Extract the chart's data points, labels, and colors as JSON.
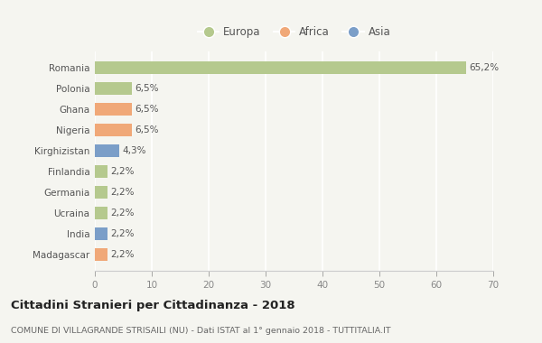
{
  "categories": [
    "Romania",
    "Polonia",
    "Ghana",
    "Nigeria",
    "Kirghizistan",
    "Finlandia",
    "Germania",
    "Ucraina",
    "India",
    "Madagascar"
  ],
  "values": [
    65.2,
    6.5,
    6.5,
    6.5,
    4.3,
    2.2,
    2.2,
    2.2,
    2.2,
    2.2
  ],
  "labels": [
    "65,2%",
    "6,5%",
    "6,5%",
    "6,5%",
    "4,3%",
    "2,2%",
    "2,2%",
    "2,2%",
    "2,2%",
    "2,2%"
  ],
  "colors": [
    "#b5c98e",
    "#b5c98e",
    "#f0a878",
    "#f0a878",
    "#7b9ec8",
    "#b5c98e",
    "#b5c98e",
    "#b5c98e",
    "#7b9ec8",
    "#f0a878"
  ],
  "legend": [
    {
      "label": "Europa",
      "color": "#b5c98e"
    },
    {
      "label": "Africa",
      "color": "#f0a878"
    },
    {
      "label": "Asia",
      "color": "#7b9ec8"
    }
  ],
  "xlim": [
    0,
    70
  ],
  "xticks": [
    0,
    10,
    20,
    30,
    40,
    50,
    60,
    70
  ],
  "title": "Cittadini Stranieri per Cittadinanza - 2018",
  "subtitle": "COMUNE DI VILLAGRANDE STRISAILI (NU) - Dati ISTAT al 1° gennaio 2018 - TUTTITALIA.IT",
  "background_color": "#f5f5f0",
  "grid_color": "#ffffff",
  "bar_height": 0.6
}
